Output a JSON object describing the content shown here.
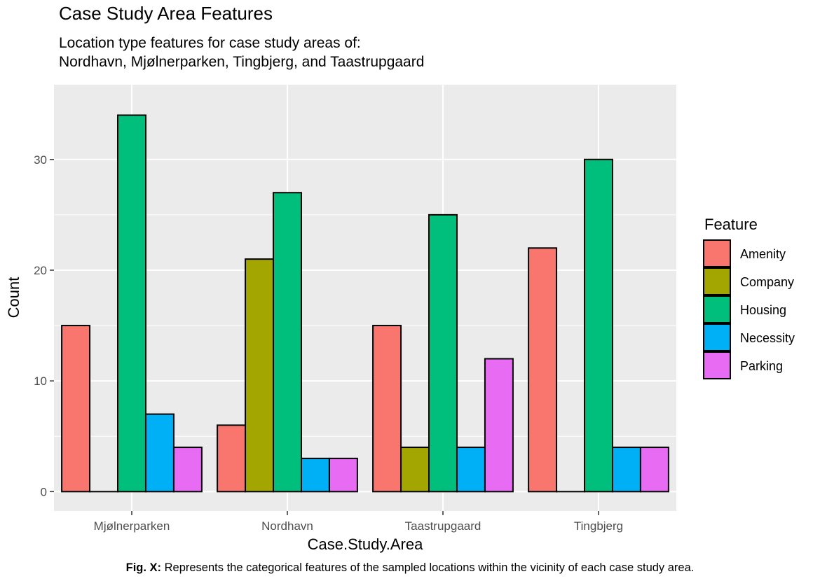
{
  "chart_data": {
    "type": "bar",
    "title": "Case Study Area Features",
    "subtitle_lines": [
      "Location type features for case study areas of:",
      "Nordhavn, Mjølnerparken, Tingbjerg, and Taastrupgaard"
    ],
    "xlabel": "Case.Study.Area",
    "ylabel": "Count",
    "categories": [
      "Mjølnerparken",
      "Nordhavn",
      "Taastrupgaard",
      "Tingbjerg"
    ],
    "ylim": [
      0,
      35
    ],
    "yticks": [
      0,
      10,
      20,
      30
    ],
    "grid": true,
    "legend": {
      "title": "Feature",
      "placement": "right"
    },
    "series": [
      {
        "name": "Amenity",
        "color": "#F8766D",
        "values": [
          15,
          6,
          15,
          22
        ]
      },
      {
        "name": "Company",
        "color": "#A3A500",
        "values": [
          0,
          21,
          4,
          0
        ]
      },
      {
        "name": "Housing",
        "color": "#00BF7D",
        "values": [
          34,
          27,
          25,
          30
        ]
      },
      {
        "name": "Necessity",
        "color": "#00B0F6",
        "values": [
          7,
          3,
          4,
          4
        ]
      },
      {
        "name": "Parking",
        "color": "#E76BF3",
        "values": [
          4,
          3,
          12,
          4
        ]
      }
    ]
  },
  "caption": {
    "label": "Fig. X:",
    "text": " Represents the categorical features of the sampled locations within the vicinity of each case study area."
  },
  "colors": {
    "panel_background": "#EBEBEB",
    "grid_major": "#FFFFFF",
    "axis_text": "#4D4D4D"
  }
}
